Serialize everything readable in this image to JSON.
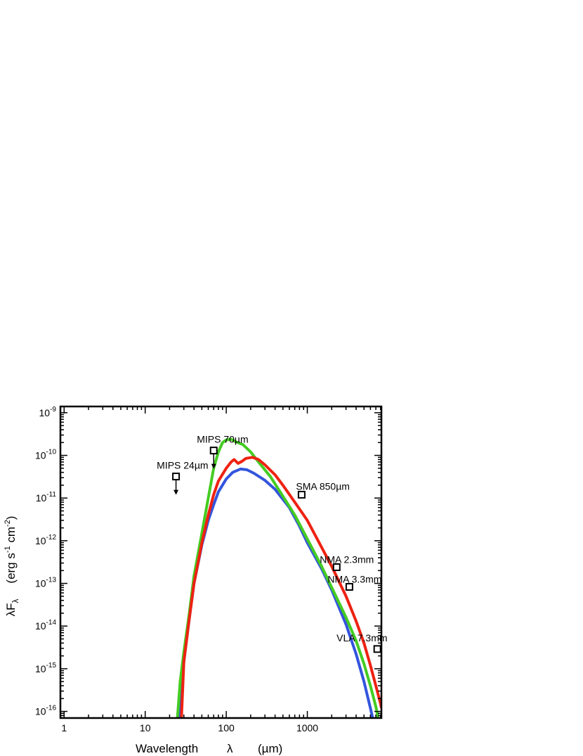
{
  "chart_data": {
    "type": "line",
    "title": "",
    "xlabel": "Wavelength",
    "xlabel_symbol": "λ",
    "xlabel_unit": "(µm)",
    "ylabel": "λF",
    "ylabel_sub": "λ",
    "ylabel_unit_parts": [
      "(erg s",
      "-1",
      " cm",
      "-2",
      ")"
    ],
    "x_scale": "log",
    "y_scale": "log",
    "xlim": [
      0.9,
      8200
    ],
    "ylim": [
      7e-17,
      1.4e-09
    ],
    "x_ticks": [
      1,
      10,
      100,
      1000
    ],
    "x_tick_labels": [
      "1",
      "10",
      "100",
      "1000"
    ],
    "y_ticks": [
      1e-16,
      1e-15,
      1e-14,
      1e-13,
      1e-12,
      1e-11,
      1e-10,
      1e-09
    ],
    "y_tick_labels": [
      {
        "base": "10",
        "exp": "-16"
      },
      {
        "base": "10",
        "exp": "-15"
      },
      {
        "base": "10",
        "exp": "-14"
      },
      {
        "base": "10",
        "exp": "-13"
      },
      {
        "base": "10",
        "exp": "-12"
      },
      {
        "base": "10",
        "exp": "-11"
      },
      {
        "base": "10",
        "exp": "-10"
      },
      {
        "base": "10",
        "exp": "-9"
      }
    ],
    "grid": false,
    "series": [
      {
        "color": "#3355dd",
        "points": [
          [
            26,
            7e-17
          ],
          [
            28,
            4e-16
          ],
          [
            30,
            1.5e-15
          ],
          [
            35,
            1.5e-14
          ],
          [
            40,
            1e-13
          ],
          [
            50,
            8e-13
          ],
          [
            60,
            3e-12
          ],
          [
            70,
            7e-12
          ],
          [
            80,
            1.4e-11
          ],
          [
            100,
            2.8e-11
          ],
          [
            120,
            4e-11
          ],
          [
            150,
            4.8e-11
          ],
          [
            180,
            4.6e-11
          ],
          [
            220,
            3.8e-11
          ],
          [
            300,
            2.6e-11
          ],
          [
            400,
            1.6e-11
          ],
          [
            600,
            6e-12
          ],
          [
            800,
            2.2e-12
          ],
          [
            1000,
            9e-13
          ],
          [
            1500,
            2.2e-13
          ],
          [
            2000,
            7e-14
          ],
          [
            3000,
            1.1e-14
          ],
          [
            4000,
            2.2e-15
          ],
          [
            5000,
            5e-16
          ],
          [
            6000,
            1.2e-16
          ],
          [
            6400,
            7e-17
          ]
        ]
      },
      {
        "color": "#44cc22",
        "points": [
          [
            25,
            7e-17
          ],
          [
            27,
            5e-16
          ],
          [
            30,
            2.5e-15
          ],
          [
            35,
            2e-14
          ],
          [
            40,
            1.5e-13
          ],
          [
            50,
            1.5e-12
          ],
          [
            60,
            1e-11
          ],
          [
            70,
            5e-11
          ],
          [
            80,
            1.2e-10
          ],
          [
            90,
            2e-10
          ],
          [
            100,
            2.3e-10
          ],
          [
            115,
            2.4e-10
          ],
          [
            130,
            2.1e-10
          ],
          [
            160,
            1.8e-10
          ],
          [
            200,
            1.2e-10
          ],
          [
            250,
            7e-11
          ],
          [
            350,
            3.2e-11
          ],
          [
            500,
            1.1e-11
          ],
          [
            700,
            4e-12
          ],
          [
            1000,
            1.1e-12
          ],
          [
            1500,
            2.5e-13
          ],
          [
            2000,
            8e-14
          ],
          [
            3000,
            1.6e-14
          ],
          [
            4000,
            4.5e-15
          ],
          [
            5000,
            1.3e-15
          ],
          [
            6000,
            4e-16
          ],
          [
            7000,
            1.3e-16
          ],
          [
            7500,
            7e-17
          ]
        ]
      },
      {
        "color": "#ee2211",
        "points": [
          [
            28,
            7e-17
          ],
          [
            30,
            1.5e-15
          ],
          [
            35,
            1.5e-14
          ],
          [
            40,
            1e-13
          ],
          [
            50,
            9e-13
          ],
          [
            60,
            4e-12
          ],
          [
            70,
            1.2e-11
          ],
          [
            80,
            2.5e-11
          ],
          [
            100,
            5e-11
          ],
          [
            115,
            7e-11
          ],
          [
            125,
            8e-11
          ],
          [
            140,
            6.5e-11
          ],
          [
            155,
            7.2e-11
          ],
          [
            175,
            8.5e-11
          ],
          [
            210,
            9e-11
          ],
          [
            250,
            8e-11
          ],
          [
            300,
            6e-11
          ],
          [
            400,
            3.5e-11
          ],
          [
            500,
            2e-11
          ],
          [
            700,
            8e-12
          ],
          [
            1000,
            3e-12
          ],
          [
            1500,
            7e-13
          ],
          [
            2000,
            2.5e-13
          ],
          [
            3000,
            5e-14
          ],
          [
            4000,
            1.3e-14
          ],
          [
            5000,
            4e-15
          ],
          [
            6000,
            1.2e-15
          ],
          [
            7000,
            4e-16
          ],
          [
            8000,
            1.5e-16
          ],
          [
            8200,
            1.2e-16
          ]
        ]
      }
    ],
    "observations": [
      {
        "label": "MIPS 24µm",
        "x": 24,
        "y": 3.2e-11,
        "upper_limit": true
      },
      {
        "label": "MIPS 70µm",
        "x": 70,
        "y": 1.3e-10,
        "upper_limit": true
      },
      {
        "label": "SMA 850µm",
        "x": 850,
        "y": 1.2e-11,
        "upper_limit": false
      },
      {
        "label": "NMA 2.3mm",
        "x": 2300,
        "y": 2.4e-13,
        "upper_limit": false
      },
      {
        "label": "NMA 3.3mm",
        "x": 3300,
        "y": 8.3e-14,
        "upper_limit": false
      },
      {
        "label": "VLA 7.3mm",
        "x": 7300,
        "y": 2.9e-15,
        "upper_limit": false
      }
    ]
  }
}
